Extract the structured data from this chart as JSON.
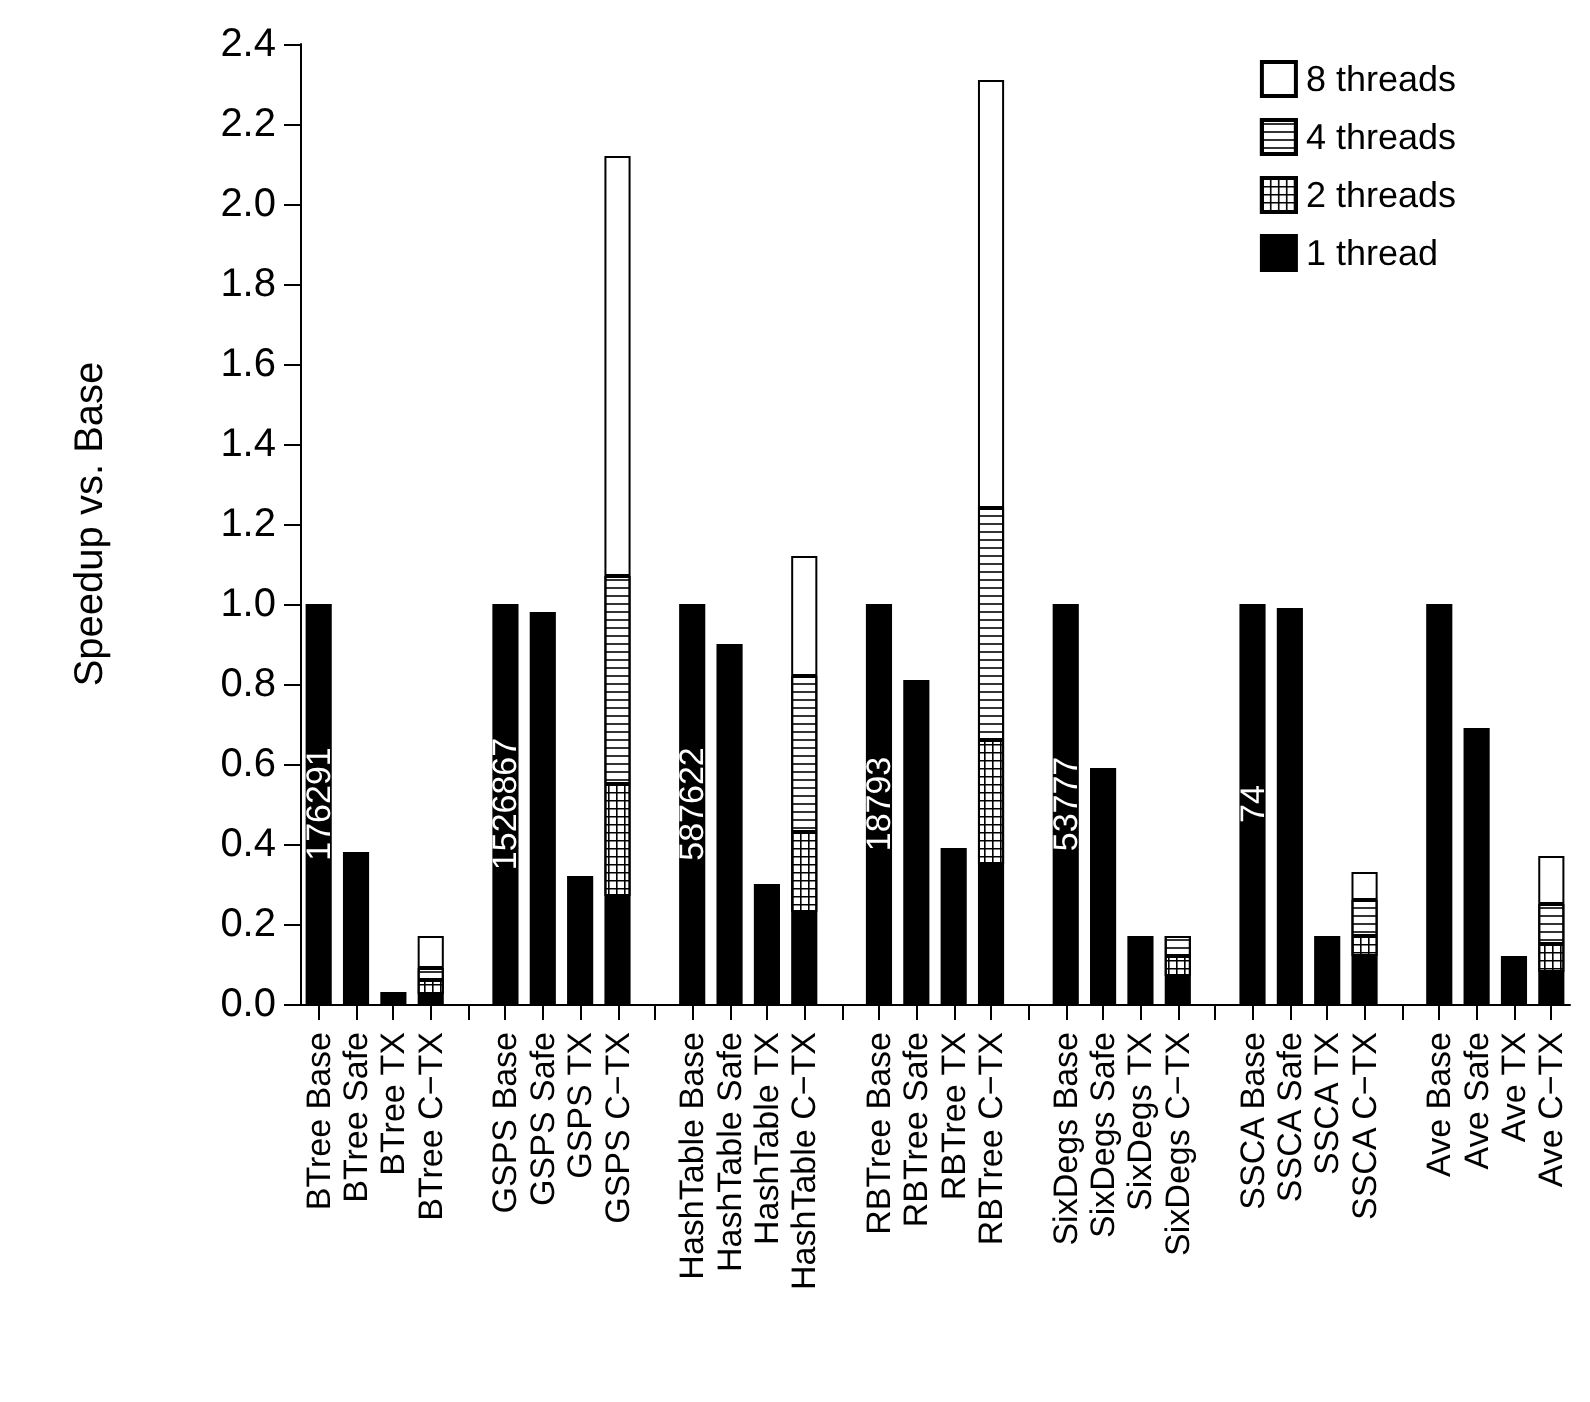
{
  "chart_data": {
    "type": "bar",
    "ylabel": "Speedup vs. Base",
    "stacked": true,
    "legend": "top right",
    "grid": false,
    "categories": [
      "BTree Base",
      "BTree Safe",
      "BTree TX",
      "BTree C−TX",
      null,
      "GSPS Base",
      "GSPS Safe",
      "GSPS TX",
      "GSPS C−TX",
      null,
      "HashTable Base",
      "HashTable Safe",
      "HashTable TX",
      "HashTable C−TX",
      null,
      "RBTree Base",
      "RBTree Safe",
      "RBTree TX",
      "RBTree C−TX",
      null,
      "SixDegs Base",
      "SixDegs Safe",
      "SixDegs TX",
      "SixDegs C−TX",
      null,
      "SSCA Base",
      "SSCA Safe",
      "SSCA TX",
      "SSCA C−TX",
      null,
      "Ave Base",
      "Ave Safe",
      "Ave TX",
      "Ave C−TX"
    ],
    "series": [
      {
        "name": "1 thread",
        "color": "#000000",
        "values": [
          1.0,
          0.38,
          0.03,
          0.025,
          null,
          1.0,
          0.98,
          0.32,
          0.27,
          null,
          1.0,
          0.9,
          0.3,
          0.23,
          null,
          1.0,
          0.81,
          0.39,
          0.35,
          null,
          1.0,
          0.59,
          0.17,
          0.07,
          null,
          1.0,
          0.99,
          0.17,
          0.12,
          null,
          1.0,
          0.69,
          0.12,
          0.08
        ]
      },
      {
        "name": "2 threads",
        "color": "#ffffff",
        "values": [
          null,
          null,
          null,
          0.035,
          null,
          null,
          null,
          null,
          0.28,
          null,
          null,
          null,
          null,
          0.2,
          null,
          null,
          null,
          null,
          0.31,
          null,
          null,
          null,
          null,
          0.05,
          null,
          null,
          null,
          null,
          0.05,
          null,
          null,
          null,
          null,
          0.07
        ]
      },
      {
        "name": "4 threads",
        "color": "#ffffff",
        "values": [
          null,
          null,
          null,
          0.03,
          null,
          null,
          null,
          null,
          0.52,
          null,
          null,
          null,
          null,
          0.39,
          null,
          null,
          null,
          null,
          0.58,
          null,
          null,
          null,
          null,
          0.05,
          null,
          null,
          null,
          null,
          0.09,
          null,
          null,
          null,
          null,
          0.1
        ]
      },
      {
        "name": "8 threads",
        "color": "#ffffff",
        "values": [
          null,
          null,
          null,
          0.08,
          null,
          null,
          null,
          null,
          1.05,
          null,
          null,
          null,
          null,
          0.3,
          null,
          null,
          null,
          null,
          1.07,
          null,
          null,
          null,
          null,
          null,
          null,
          null,
          null,
          null,
          0.07,
          null,
          null,
          null,
          null,
          0.12
        ]
      }
    ],
    "ylim": [
      0,
      2.4
    ],
    "yticks": [
      {
        "value": 0,
        "label": "0.0"
      },
      {
        "value": 0.2,
        "label": "0.2"
      },
      {
        "value": 0.4,
        "label": "0.4"
      },
      {
        "value": 0.6,
        "label": "0.6"
      },
      {
        "value": 0.8,
        "label": "0.8"
      },
      {
        "value": 1,
        "label": "1.0"
      },
      {
        "value": 1.2,
        "label": "1.2"
      },
      {
        "value": 1.4,
        "label": "1.4"
      },
      {
        "value": 1.6,
        "label": "1.6"
      },
      {
        "value": 1.8,
        "label": "1.8"
      },
      {
        "value": 2,
        "label": "2.0"
      },
      {
        "value": 2.2,
        "label": "2.2"
      },
      {
        "value": 2.4,
        "label": "2.4"
      }
    ],
    "annotations": [
      "176291",
      "1526867",
      "587622",
      "18793",
      "53777",
      "74"
    ]
  }
}
